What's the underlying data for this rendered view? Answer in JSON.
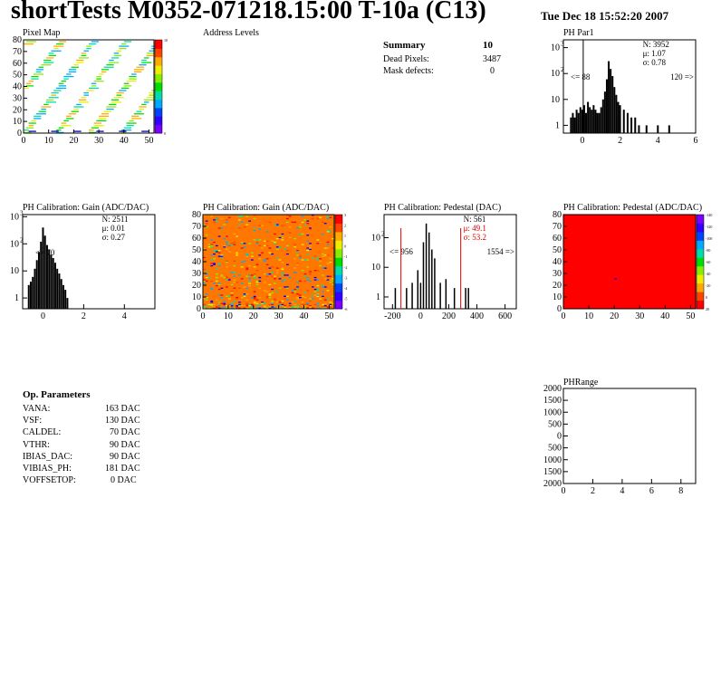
{
  "header": {
    "title": "shortTests M0352-071218.15:00 T-10a (C13)",
    "date": "Tue Dec 18 15:52:20 2007"
  },
  "summary": {
    "title": "Summary",
    "count": "10",
    "rows": [
      {
        "label": "Dead Pixels:",
        "value": "3487"
      },
      {
        "label": "Mask defects:",
        "value": "0"
      }
    ]
  },
  "op_params": {
    "title": "Op. Parameters",
    "rows": [
      {
        "name": "VANA:",
        "value": "163 DAC"
      },
      {
        "name": "VSF:",
        "value": "130 DAC"
      },
      {
        "name": "CALDEL:",
        "value": "70 DAC"
      },
      {
        "name": "VTHR:",
        "value": "90 DAC"
      },
      {
        "name": "IBIAS_DAC:",
        "value": "90 DAC"
      },
      {
        "name": "VIBIAS_PH:",
        "value": "181 DAC"
      },
      {
        "name": "VOFFSETOP:",
        "value": "0 DAC"
      }
    ]
  },
  "colors": {
    "red_stats": "#dd0000",
    "frame": "#000000"
  },
  "chart_data": [
    {
      "id": "pixel-map",
      "type": "heatmap",
      "title": "Pixel Map",
      "xlim": [
        0,
        52
      ],
      "ylim": [
        0,
        80
      ],
      "xticks": [
        "0",
        "10",
        "20",
        "30",
        "40",
        "50"
      ],
      "yticks": [
        "0",
        "10",
        "20",
        "30",
        "40",
        "50",
        "60",
        "70",
        "80"
      ],
      "palette_max": 10
    },
    {
      "id": "address-levels",
      "type": "bar",
      "title": "Address Levels",
      "values": []
    },
    {
      "id": "ph-par1",
      "type": "bar",
      "title": "PH Par1",
      "log_y": true,
      "xlim": [
        -1,
        6
      ],
      "ylim": [
        0.5,
        2000
      ],
      "xticks": [
        "0",
        "2",
        "4",
        "6"
      ],
      "yticks": [
        "1",
        "10",
        "10",
        "10"
      ],
      "ytick_exp": [
        "",
        "",
        "2",
        "3"
      ],
      "stats": {
        "n": "N: 3952",
        "mean": "μ: 1.07",
        "sigma": "σ: 0.78"
      },
      "underflow": "<= 88",
      "overflow": "120 =>",
      "x": [
        -0.6,
        -0.5,
        -0.4,
        -0.3,
        -0.2,
        -0.1,
        0,
        0.1,
        0.2,
        0.3,
        0.4,
        0.5,
        0.6,
        0.7,
        0.8,
        0.9,
        1.0,
        1.1,
        1.2,
        1.3,
        1.4,
        1.5,
        1.6,
        1.7,
        1.8,
        1.9,
        2.0,
        2.2,
        2.4,
        2.6,
        2.8,
        3.0,
        3.4,
        4.0,
        4.6
      ],
      "values": [
        2,
        3,
        2,
        4,
        3,
        5,
        4,
        6,
        3,
        8,
        5,
        4,
        6,
        4,
        3,
        3,
        5,
        10,
        20,
        60,
        300,
        150,
        80,
        30,
        15,
        8,
        6,
        4,
        3,
        2,
        2,
        1,
        1,
        1,
        1
      ]
    },
    {
      "id": "gain-hist",
      "type": "bar",
      "title": "PH Calibration: Gain (ADC/DAC)",
      "log_y": true,
      "xlim": [
        -1,
        5.5
      ],
      "ylim": [
        0.4,
        1200
      ],
      "xticks": [
        "0",
        "2",
        "4"
      ],
      "yticks": [
        "1",
        "10",
        "10",
        "10"
      ],
      "ytick_exp": [
        "",
        "",
        "2",
        "3"
      ],
      "stats": {
        "n": "N: 2511",
        "mean": "μ: 0.01",
        "sigma": "σ: 0.27"
      },
      "underflow": "<= 70",
      "overflow": "",
      "x": [
        -0.7,
        -0.6,
        -0.5,
        -0.4,
        -0.3,
        -0.2,
        -0.1,
        0,
        0.1,
        0.2,
        0.3,
        0.4,
        0.5,
        0.6,
        0.7,
        0.8,
        0.9,
        1.0,
        1.1,
        1.2
      ],
      "values": [
        3,
        4,
        6,
        12,
        25,
        50,
        120,
        400,
        200,
        90,
        60,
        40,
        30,
        20,
        12,
        8,
        5,
        3,
        2,
        1
      ]
    },
    {
      "id": "gain-map",
      "type": "heatmap",
      "title": "PH Calibration: Gain (ADC/DAC)",
      "xlim": [
        0,
        52
      ],
      "ylim": [
        0,
        80
      ],
      "xticks": [
        "0",
        "10",
        "20",
        "30",
        "40",
        "50"
      ],
      "yticks": [
        "0",
        "10",
        "20",
        "30",
        "40",
        "50",
        "60",
        "70",
        "80"
      ],
      "scale_labels": [
        "-6",
        "-5",
        "-4",
        "-3",
        "-2",
        "-1",
        "0",
        "1",
        "2",
        "3"
      ]
    },
    {
      "id": "pedestal-hist",
      "type": "bar",
      "title": "PH Calibration: Pedestal (DAC)",
      "log_y": true,
      "xlim": [
        -260,
        680
      ],
      "ylim": [
        0.4,
        600
      ],
      "xticks": [
        "-200",
        "0",
        "200",
        "400",
        "600"
      ],
      "yticks": [
        "1",
        "10",
        "10"
      ],
      "ytick_exp": [
        "",
        "",
        "2"
      ],
      "stats": {
        "n": "N:  561",
        "mean": "μ: 49.1",
        "sigma": "σ: 53.2"
      },
      "underflow": "<= 956",
      "overflow": "1554 =>",
      "x": [
        -180,
        -100,
        -60,
        -20,
        0,
        20,
        40,
        60,
        80,
        100,
        140,
        180,
        240,
        320,
        340
      ],
      "values": [
        2,
        2,
        3,
        8,
        3,
        70,
        300,
        150,
        40,
        20,
        3,
        4,
        2,
        2,
        2
      ],
      "fit_lines_x": [
        -140,
        285
      ]
    },
    {
      "id": "pedestal-map",
      "type": "heatmap",
      "title": "PH Calibration: Pedestal (ADC/DAC)",
      "xlim": [
        0,
        52
      ],
      "ylim": [
        0,
        80
      ],
      "xticks": [
        "0",
        "10",
        "20",
        "30",
        "40",
        "50"
      ],
      "yticks": [
        "0",
        "10",
        "20",
        "30",
        "40",
        "50",
        "60",
        "70",
        "80"
      ],
      "scale_labels": [
        "20",
        "0",
        "-20",
        "-40",
        "-60",
        "-80",
        "-100",
        "-120",
        "-140"
      ]
    },
    {
      "id": "ph-range",
      "type": "bar",
      "title": "PHRange",
      "xlim": [
        0,
        9
      ],
      "ylim": [
        -2000,
        2000
      ],
      "xticks": [
        "0",
        "2",
        "4",
        "6",
        "8"
      ],
      "yticks": [
        "2000",
        "1500",
        "1000",
        "500",
        "0",
        "500",
        "1000",
        "1500",
        "2000"
      ],
      "values": []
    }
  ]
}
